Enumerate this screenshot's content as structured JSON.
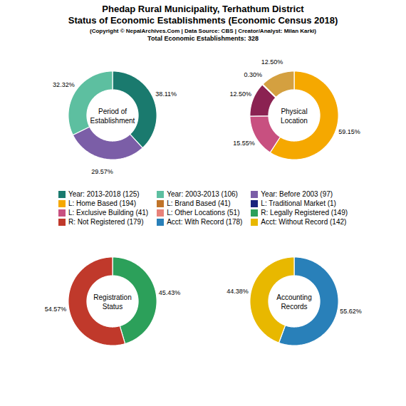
{
  "chart_data": {
    "type": "pie",
    "title": "Phedap Rural Municipality, Terhathum District\nStatus of Economic Establishments (Economic Census 2018)",
    "subtitle": "(Copyright © NepalArchives.Com | Data Source: CBS | Creator/Analyst: Milan Karki)",
    "annotations": [
      "Total Economic Establishments: 328"
    ],
    "charts": [
      {
        "type": "pie",
        "title": "Period of\nEstablishment",
        "values": [
          38.11,
          29.57,
          32.32
        ],
        "value_labels": [
          "38.11%",
          "29.57%",
          "32.32%"
        ],
        "colors": [
          "#1a7a6e",
          "#7b5ea7",
          "#5dbfa0"
        ],
        "data_labels": true
      },
      {
        "type": "pie",
        "title": "Physical\nLocation",
        "values": [
          59.15,
          15.55,
          12.5,
          0.3,
          12.5
        ],
        "value_labels": [
          "59.15%",
          "15.55%",
          "12.50%",
          "0.30%",
          "12.50%"
        ],
        "colors": [
          "#f5a800",
          "#c85080",
          "#8b2252",
          "#111133",
          "#d4a040"
        ],
        "data_labels": true
      },
      {
        "type": "pie",
        "title": "Registration\nStatus",
        "values": [
          45.43,
          54.57
        ],
        "value_labels": [
          "45.43%",
          "54.57%"
        ],
        "colors": [
          "#2ca05a",
          "#c0392b"
        ],
        "data_labels": true
      },
      {
        "type": "pie",
        "title": "Accounting\nRecords",
        "values": [
          55.62,
          44.38
        ],
        "value_labels": [
          "55.62%",
          "44.38%"
        ],
        "colors": [
          "#2980b9",
          "#e8b800"
        ],
        "data_labels": true
      }
    ],
    "series": [
      {
        "name": "Year: 2013-2018 (125)",
        "color": "#1a7a6e"
      },
      {
        "name": "Year: 2003-2013 (106)",
        "color": "#5dbfa0"
      },
      {
        "name": "Year: Before 2003 (97)",
        "color": "#7b5ea7"
      },
      {
        "name": "L: Home Based (194)",
        "color": "#f5a800"
      },
      {
        "name": "L: Brand Based (41)",
        "color": "#c0742a"
      },
      {
        "name": "L: Traditional Market (1)",
        "color": "#1a237e"
      },
      {
        "name": "L: Exclusive Building (41)",
        "color": "#c85080"
      },
      {
        "name": "L: Other Locations (51)",
        "color": "#e8827a"
      },
      {
        "name": "R: Legally Registered (149)",
        "color": "#2ca05a"
      },
      {
        "name": "R: Not Registered (179)",
        "color": "#c0392b"
      },
      {
        "name": "Acct: With Record (178)",
        "color": "#2980b9"
      },
      {
        "name": "Acct: Without Record (142)",
        "color": "#e8b800"
      }
    ]
  }
}
